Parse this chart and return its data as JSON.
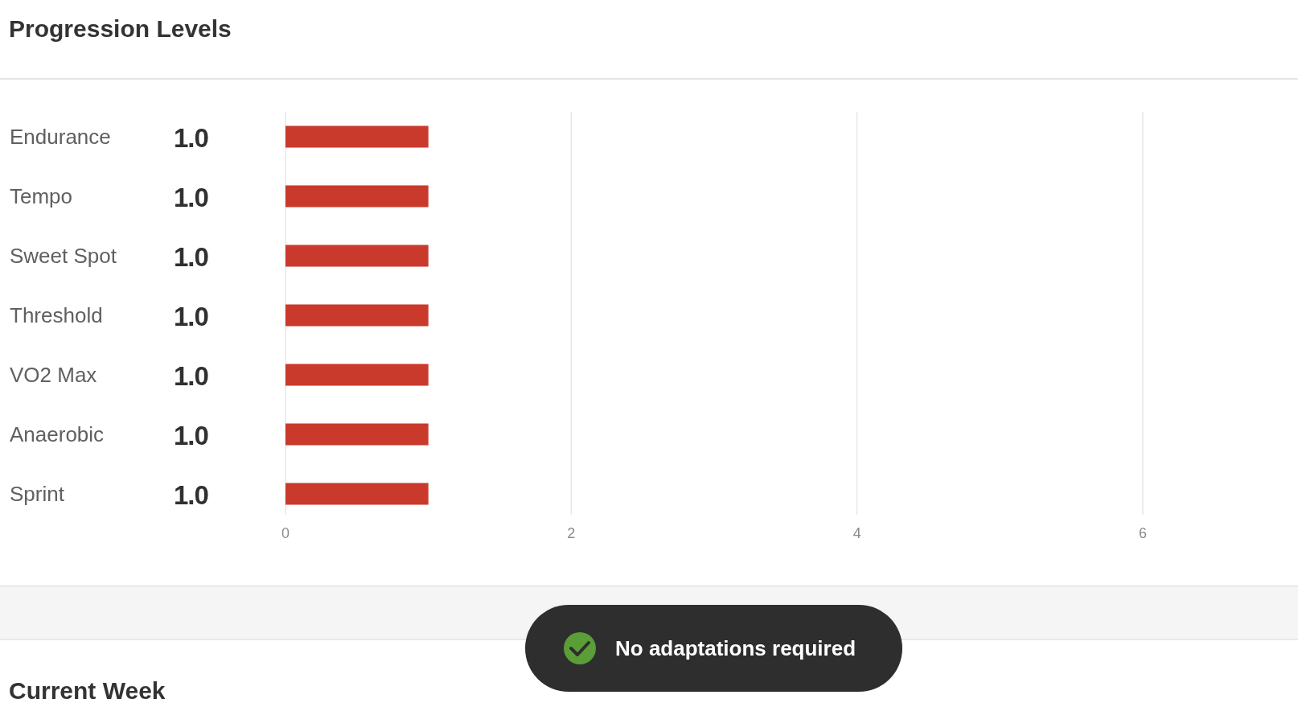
{
  "chart_data": {
    "type": "bar",
    "orientation": "horizontal",
    "title": "Progression Levels",
    "categories": [
      "Endurance",
      "Tempo",
      "Sweet Spot",
      "Threshold",
      "VO2 Max",
      "Anaerobic",
      "Sprint"
    ],
    "values": [
      1,
      1,
      1,
      1,
      1,
      1,
      1
    ],
    "value_labels": [
      "1.0",
      "1.0",
      "1.0",
      "1.0",
      "1.0",
      "1.0",
      "1.0"
    ],
    "color": "#c9392c",
    "xlim": [
      0,
      6
    ],
    "xticks": [
      0,
      2,
      4,
      6
    ],
    "grid": "x",
    "annotations": [
      "No adaptations required",
      "Current Week"
    ]
  }
}
